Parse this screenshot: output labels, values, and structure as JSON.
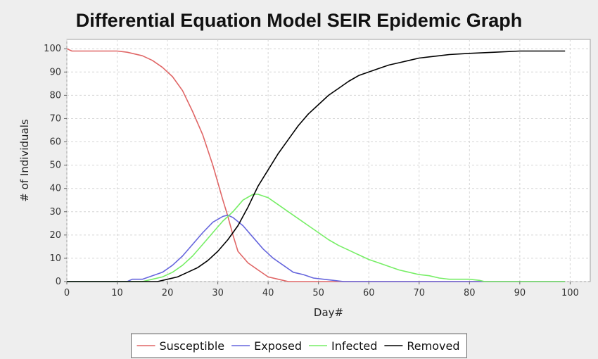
{
  "chart_data": {
    "type": "line",
    "title": "Differential Equation Model SEIR Epidemic Graph",
    "xlabel": "Day#",
    "ylabel": "# of Individuals",
    "xlim": [
      0,
      104
    ],
    "ylim": [
      0,
      104
    ],
    "xticks": [
      0,
      10,
      20,
      30,
      40,
      50,
      60,
      70,
      80,
      90,
      100
    ],
    "yticks": [
      0,
      10,
      20,
      30,
      40,
      50,
      60,
      70,
      80,
      90,
      100
    ],
    "grid": true,
    "legend_position": "bottom",
    "series": [
      {
        "name": "Susceptible",
        "color": "#e06666",
        "points": [
          [
            0,
            100
          ],
          [
            1,
            99
          ],
          [
            5,
            99
          ],
          [
            10,
            99
          ],
          [
            12,
            98.5
          ],
          [
            15,
            97
          ],
          [
            17,
            95
          ],
          [
            19,
            92
          ],
          [
            21,
            88
          ],
          [
            23,
            82
          ],
          [
            25,
            73
          ],
          [
            27,
            63
          ],
          [
            29,
            50
          ],
          [
            31,
            35
          ],
          [
            32,
            28
          ],
          [
            33,
            20
          ],
          [
            34,
            13
          ],
          [
            36,
            8
          ],
          [
            38,
            5
          ],
          [
            40,
            2
          ],
          [
            42,
            1
          ],
          [
            44,
            0
          ],
          [
            99,
            0
          ]
        ]
      },
      {
        "name": "Exposed",
        "color": "#6666dd",
        "points": [
          [
            0,
            0
          ],
          [
            12,
            0
          ],
          [
            13,
            1
          ],
          [
            15,
            1
          ],
          [
            17,
            2.5
          ],
          [
            19,
            4
          ],
          [
            21,
            7
          ],
          [
            23,
            11
          ],
          [
            25,
            16
          ],
          [
            27,
            21
          ],
          [
            29,
            25.5
          ],
          [
            31,
            28
          ],
          [
            32,
            28.5
          ],
          [
            33,
            27.5
          ],
          [
            35,
            24
          ],
          [
            37,
            19
          ],
          [
            39,
            14
          ],
          [
            41,
            10
          ],
          [
            43,
            7
          ],
          [
            45,
            4
          ],
          [
            47,
            3
          ],
          [
            49,
            1.5
          ],
          [
            51,
            1
          ],
          [
            53,
            0.5
          ],
          [
            55,
            0
          ],
          [
            99,
            0
          ]
        ]
      },
      {
        "name": "Infected",
        "color": "#77ee66",
        "points": [
          [
            0,
            0
          ],
          [
            15,
            0
          ],
          [
            17,
            1
          ],
          [
            19,
            2
          ],
          [
            21,
            4
          ],
          [
            23,
            7
          ],
          [
            25,
            11
          ],
          [
            27,
            16
          ],
          [
            29,
            21
          ],
          [
            31,
            26
          ],
          [
            33,
            30
          ],
          [
            35,
            35
          ],
          [
            37,
            37.5
          ],
          [
            38,
            37.5
          ],
          [
            40,
            36
          ],
          [
            42,
            33
          ],
          [
            44,
            30
          ],
          [
            46,
            27
          ],
          [
            48,
            24
          ],
          [
            50,
            21
          ],
          [
            52,
            18
          ],
          [
            54,
            15.5
          ],
          [
            56,
            13.5
          ],
          [
            58,
            11.5
          ],
          [
            60,
            9.5
          ],
          [
            62,
            8
          ],
          [
            64,
            6.5
          ],
          [
            66,
            5
          ],
          [
            68,
            4
          ],
          [
            70,
            3
          ],
          [
            72,
            2.5
          ],
          [
            74,
            1.5
          ],
          [
            76,
            1
          ],
          [
            80,
            1
          ],
          [
            82,
            0.5
          ],
          [
            83,
            0
          ],
          [
            99,
            0
          ]
        ]
      },
      {
        "name": "Removed",
        "color": "#000000",
        "points": [
          [
            0,
            0
          ],
          [
            18,
            0
          ],
          [
            20,
            1
          ],
          [
            22,
            2
          ],
          [
            24,
            4
          ],
          [
            26,
            6
          ],
          [
            28,
            9
          ],
          [
            30,
            13
          ],
          [
            32,
            18
          ],
          [
            34,
            24
          ],
          [
            36,
            32
          ],
          [
            38,
            41
          ],
          [
            40,
            48
          ],
          [
            42,
            55
          ],
          [
            44,
            61
          ],
          [
            46,
            67
          ],
          [
            48,
            72
          ],
          [
            50,
            76
          ],
          [
            52,
            80
          ],
          [
            54,
            83
          ],
          [
            56,
            86
          ],
          [
            58,
            88.5
          ],
          [
            60,
            90
          ],
          [
            62,
            91.5
          ],
          [
            64,
            93
          ],
          [
            66,
            94
          ],
          [
            68,
            95
          ],
          [
            70,
            96
          ],
          [
            72,
            96.5
          ],
          [
            74,
            97
          ],
          [
            76,
            97.5
          ],
          [
            80,
            98
          ],
          [
            85,
            98.5
          ],
          [
            90,
            99
          ],
          [
            95,
            99
          ],
          [
            99,
            99
          ]
        ]
      }
    ]
  }
}
